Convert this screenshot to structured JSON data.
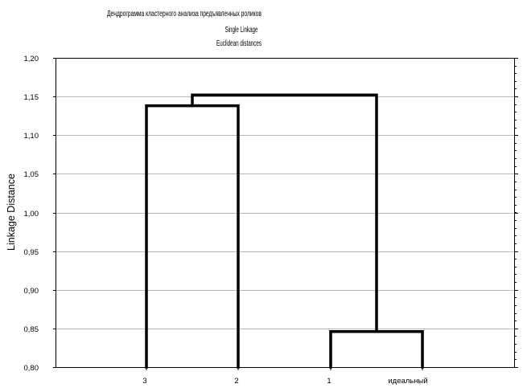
{
  "chart_data": {
    "type": "dendrogram",
    "title": "Дендрограмма кластерного анализа предъявленных роликов",
    "subtitle_1": "Single Linkage",
    "subtitle_2": "Euclidean distances",
    "ylabel": "Linkage Distance",
    "xlabel": "",
    "ylim": [
      0.8,
      1.2
    ],
    "yticks": [
      "0,80",
      "0,85",
      "0,90",
      "0,95",
      "1,00",
      "1,05",
      "1,10",
      "1,15",
      "1,20"
    ],
    "ytick_values": [
      0.8,
      0.85,
      0.9,
      0.95,
      1.0,
      1.05,
      1.1,
      1.15,
      1.2
    ],
    "grid": true,
    "leaves": [
      "3",
      "2",
      "1",
      "идеальный"
    ],
    "merges": [
      {
        "left": "3",
        "right": "2",
        "height": 1.138
      },
      {
        "left": "1",
        "right": "идеальный",
        "height": 0.846
      },
      {
        "left": "cluster(3,2)",
        "right": "cluster(1,идеальный)",
        "height": 1.152
      }
    ]
  }
}
